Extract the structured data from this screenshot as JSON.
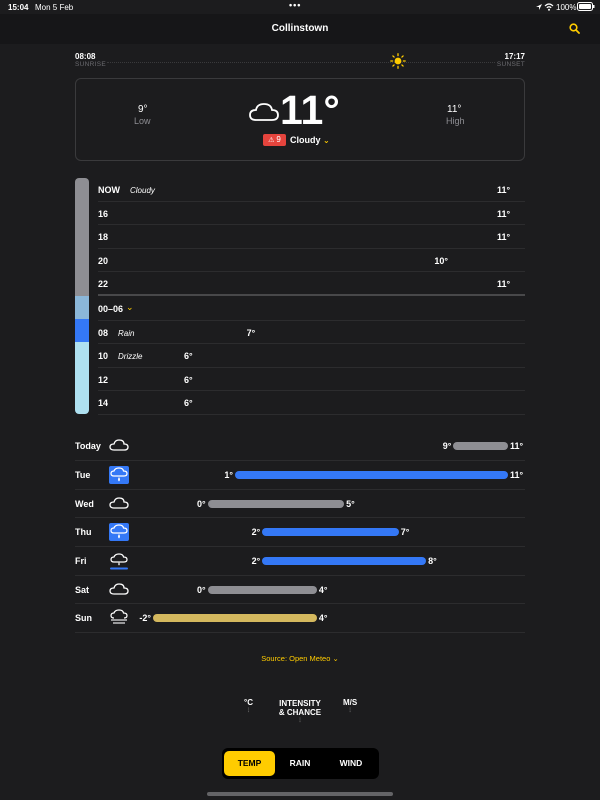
{
  "status_bar": {
    "time": "15:04",
    "date": "Mon 5 Feb",
    "battery": "100%"
  },
  "header": {
    "title": "Collinstown",
    "search_icon": "search-icon"
  },
  "sun": {
    "sunrise_time": "08:08",
    "sunrise_label": "SUNRISE",
    "sunset_time": "17:17",
    "sunset_label": "SUNSET",
    "icon": "sun-icon"
  },
  "current": {
    "low_value": "9°",
    "low_label": "Low",
    "temp": "11°",
    "high_value": "11°",
    "high_label": "High",
    "alert_badge": "9",
    "condition": "Cloudy",
    "icon": "cloud-icon"
  },
  "hourly": [
    {
      "hour": "NOW",
      "condition": "Cloudy",
      "temp": "11°"
    },
    {
      "hour": "16",
      "condition": "",
      "temp": "11°"
    },
    {
      "hour": "18",
      "condition": "",
      "temp": "11°"
    },
    {
      "hour": "20",
      "condition": "",
      "temp": "10°"
    },
    {
      "hour": "22",
      "condition": "",
      "temp": "11°"
    },
    {
      "hour": "00–06",
      "condition": "",
      "temp": ""
    },
    {
      "hour": "08",
      "condition": "Rain",
      "temp": "7°"
    },
    {
      "hour": "10",
      "condition": "Drizzle",
      "temp": "6°"
    },
    {
      "hour": "12",
      "condition": "",
      "temp": "6°"
    },
    {
      "hour": "14",
      "condition": "",
      "temp": "6°"
    }
  ],
  "daily": [
    {
      "day": "Today",
      "icon": "cloud-icon",
      "low": "9°",
      "high": "11°",
      "bar_color": "#8e8e93"
    },
    {
      "day": "Tue",
      "icon": "rain-icon",
      "low": "1°",
      "high": "11°",
      "bar_color": "#3478f6"
    },
    {
      "day": "Wed",
      "icon": "cloud-icon",
      "low": "0°",
      "high": "5°",
      "bar_color": "#8e8e93"
    },
    {
      "day": "Thu",
      "icon": "rain-icon",
      "low": "2°",
      "high": "7°",
      "bar_color": "#3478f6"
    },
    {
      "day": "Fri",
      "icon": "rain-drizzle-icon",
      "low": "2°",
      "high": "8°",
      "bar_color": "#3478f6"
    },
    {
      "day": "Sat",
      "icon": "cloud-icon",
      "low": "0°",
      "high": "4°",
      "bar_color": "#8e8e93"
    },
    {
      "day": "Sun",
      "icon": "fog-icon",
      "low": "-2°",
      "high": "4°",
      "bar_color": "#d4b85e"
    }
  ],
  "source": {
    "label": "Source: Open Meteo"
  },
  "units": {
    "temp": "°C",
    "intensity": "INTENSITY\n& CHANCE",
    "wind": "M/S"
  },
  "toggle": {
    "temp": "TEMP",
    "rain": "RAIN",
    "wind": "WIND",
    "active": "TEMP"
  },
  "colors": {
    "accent": "#ffcc00",
    "rain_blue": "#3478f6",
    "cloudy_gray": "#8e8e93",
    "alert_red": "#e5443d"
  }
}
